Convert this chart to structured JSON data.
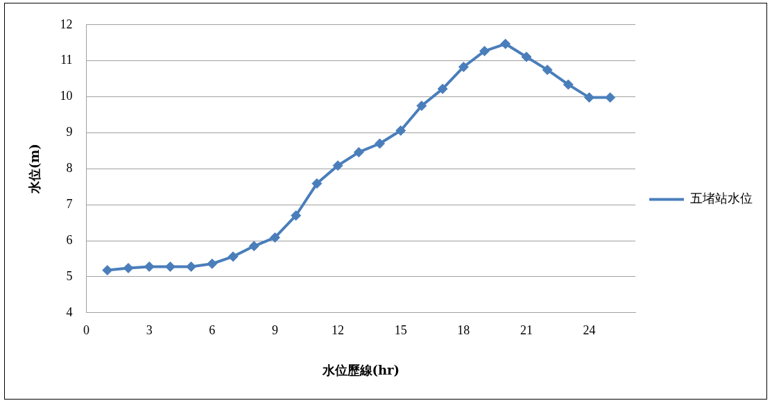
{
  "chart_data": {
    "type": "line",
    "xlabel": "水位歷線(hr)",
    "ylabel": "水位(m)",
    "x": [
      1,
      2,
      3,
      4,
      5,
      6,
      7,
      8,
      9,
      10,
      11,
      12,
      13,
      14,
      15,
      16,
      17,
      18,
      19,
      20,
      21,
      22,
      23,
      24,
      25
    ],
    "series": [
      {
        "name": "五堵站水位",
        "color": "#4a7ebb",
        "values": [
          5.18,
          5.24,
          5.28,
          5.28,
          5.28,
          5.36,
          5.56,
          5.85,
          6.09,
          6.7,
          7.59,
          8.09,
          8.46,
          8.7,
          9.06,
          9.75,
          10.22,
          10.83,
          11.27,
          11.47,
          11.11,
          10.75,
          10.34,
          9.98,
          9.98
        ]
      }
    ],
    "xlim": [
      0,
      26.2
    ],
    "xticks": [
      0,
      3,
      6,
      9,
      12,
      15,
      18,
      21,
      24
    ],
    "ylim": [
      4,
      12
    ],
    "yticks": [
      4,
      5,
      6,
      7,
      8,
      9,
      10,
      11,
      12
    ],
    "grid": "y",
    "legend": "right",
    "marker": "diamond",
    "line_style": "solid"
  }
}
